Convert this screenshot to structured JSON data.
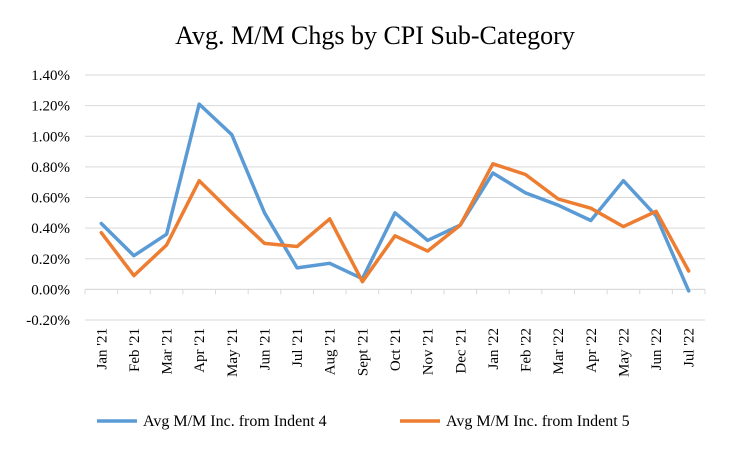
{
  "chart_data": {
    "type": "line",
    "title": "Avg.  M/M Chgs  by  CPI Sub-Category",
    "xlabel": "",
    "ylabel": "",
    "ylim": [
      -0.2,
      1.4
    ],
    "y_ticks": [
      "-0.20%",
      "0.00%",
      "0.20%",
      "0.40%",
      "0.60%",
      "0.80%",
      "1.00%",
      "1.20%",
      "1.40%"
    ],
    "y_tick_values": [
      -0.2,
      0.0,
      0.2,
      0.4,
      0.6,
      0.8,
      1.0,
      1.2,
      1.4
    ],
    "grid": true,
    "legend_position": "bottom",
    "categories": [
      "Jan '21",
      "Feb '21",
      "Mar '21",
      "Apr '21",
      "May '21",
      "Jun '21",
      "Jul '21",
      "Aug '21",
      "Sept '21",
      "Oct '21",
      "Nov '21",
      "Dec '21",
      "Jan '22",
      "Feb '22",
      "Mar '22",
      "Apr '22",
      "May '22",
      "Jun '22",
      "Jul '22"
    ],
    "series": [
      {
        "name": "Avg M/M Inc. from Indent 4",
        "color": "#5b9bd5",
        "values": [
          0.43,
          0.22,
          0.36,
          1.21,
          1.01,
          0.5,
          0.14,
          0.17,
          0.07,
          0.5,
          0.32,
          0.42,
          0.76,
          0.63,
          0.55,
          0.45,
          0.71,
          0.48,
          -0.01
        ]
      },
      {
        "name": "Avg M/M Inc. from Indent 5",
        "color": "#ed7d31",
        "values": [
          0.37,
          0.09,
          0.29,
          0.71,
          0.5,
          0.3,
          0.28,
          0.46,
          0.05,
          0.35,
          0.25,
          0.42,
          0.82,
          0.75,
          0.59,
          0.53,
          0.41,
          0.51,
          0.12
        ]
      }
    ]
  }
}
